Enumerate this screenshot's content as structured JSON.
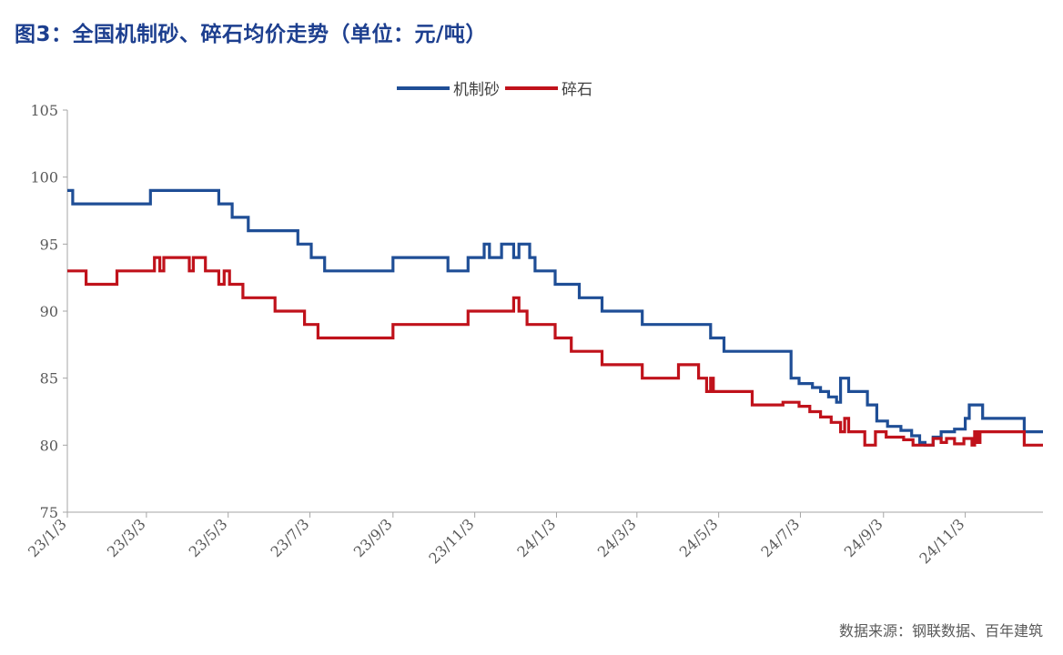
{
  "title": "图3：全国机制砂、碎石均价走势（单位：元/吨）",
  "source": "数据来源：钢联数据、百年建筑",
  "colors": {
    "series1": "#1f4e96",
    "series2": "#c0121b",
    "title": "#1d3f8f"
  },
  "chart_data": {
    "type": "line",
    "title": "图3：全国机制砂、碎石均价走势（单位：元/吨）",
    "xlabel": "",
    "ylabel": "",
    "ylim": [
      75,
      105
    ],
    "yticks": [
      75,
      80,
      85,
      90,
      95,
      100,
      105
    ],
    "xlim": [
      "2023-01-03",
      "2024-12-31"
    ],
    "xticks": [
      "23/1/3",
      "23/3/3",
      "23/5/3",
      "23/7/3",
      "23/9/3",
      "23/11/3",
      "24/1/3",
      "24/3/3",
      "24/5/3",
      "24/7/3",
      "24/9/3",
      "24/11/3"
    ],
    "xtick_dates": [
      "2023-01-03",
      "2023-03-03",
      "2023-05-03",
      "2023-07-03",
      "2023-09-03",
      "2023-11-03",
      "2024-01-03",
      "2024-03-03",
      "2024-05-03",
      "2024-07-03",
      "2024-09-03",
      "2024-11-03"
    ],
    "grid": false,
    "legend": "top-center",
    "step": true,
    "series": [
      {
        "name": "机制砂",
        "color": "#1f4e96",
        "points": [
          [
            "2023-01-03",
            99
          ],
          [
            "2023-01-07",
            98
          ],
          [
            "2023-03-06",
            99
          ],
          [
            "2023-04-26",
            98
          ],
          [
            "2023-05-06",
            97
          ],
          [
            "2023-05-18",
            96
          ],
          [
            "2023-06-24",
            95
          ],
          [
            "2023-07-04",
            94
          ],
          [
            "2023-07-14",
            93
          ],
          [
            "2023-09-03",
            94
          ],
          [
            "2023-10-14",
            93
          ],
          [
            "2023-10-29",
            94
          ],
          [
            "2023-11-10",
            95
          ],
          [
            "2023-11-14",
            94
          ],
          [
            "2023-11-23",
            95
          ],
          [
            "2023-12-02",
            94
          ],
          [
            "2023-12-06",
            95
          ],
          [
            "2023-12-14",
            94
          ],
          [
            "2023-12-18",
            93
          ],
          [
            "2024-01-02",
            92
          ],
          [
            "2024-01-20",
            91
          ],
          [
            "2024-02-06",
            90
          ],
          [
            "2024-03-07",
            89
          ],
          [
            "2024-04-27",
            88
          ],
          [
            "2024-05-07",
            87
          ],
          [
            "2024-06-26",
            85
          ],
          [
            "2024-07-02",
            84.6
          ],
          [
            "2024-07-12",
            84.3
          ],
          [
            "2024-07-18",
            84
          ],
          [
            "2024-07-24",
            83.6
          ],
          [
            "2024-07-30",
            83.2
          ],
          [
            "2024-08-02",
            85
          ],
          [
            "2024-08-08",
            84
          ],
          [
            "2024-08-22",
            83
          ],
          [
            "2024-08-29",
            81.8
          ],
          [
            "2024-09-06",
            81.4
          ],
          [
            "2024-09-16",
            81.1
          ],
          [
            "2024-09-24",
            80.7
          ],
          [
            "2024-09-30",
            80.2
          ],
          [
            "2024-10-04",
            80
          ],
          [
            "2024-10-10",
            80.6
          ],
          [
            "2024-10-16",
            81
          ],
          [
            "2024-10-26",
            81.2
          ],
          [
            "2024-11-03",
            82
          ],
          [
            "2024-11-06",
            83
          ],
          [
            "2024-11-16",
            82
          ],
          [
            "2024-12-17",
            81
          ],
          [
            "2024-12-31",
            81
          ]
        ]
      },
      {
        "name": "碎石",
        "color": "#c0121b",
        "points": [
          [
            "2023-01-03",
            93
          ],
          [
            "2023-01-17",
            92
          ],
          [
            "2023-02-09",
            93
          ],
          [
            "2023-03-09",
            94
          ],
          [
            "2023-03-13",
            93
          ],
          [
            "2023-03-16",
            94
          ],
          [
            "2023-04-04",
            93
          ],
          [
            "2023-04-07",
            94
          ],
          [
            "2023-04-16",
            93
          ],
          [
            "2023-04-26",
            92
          ],
          [
            "2023-04-30",
            93
          ],
          [
            "2023-05-04",
            92
          ],
          [
            "2023-05-14",
            91
          ],
          [
            "2023-06-07",
            90
          ],
          [
            "2023-06-29",
            89
          ],
          [
            "2023-07-09",
            88
          ],
          [
            "2023-09-03",
            89
          ],
          [
            "2023-10-29",
            90
          ],
          [
            "2023-12-02",
            91
          ],
          [
            "2023-12-06",
            90
          ],
          [
            "2023-12-12",
            89
          ],
          [
            "2024-01-02",
            88
          ],
          [
            "2024-01-14",
            87
          ],
          [
            "2024-02-06",
            86
          ],
          [
            "2024-03-07",
            85
          ],
          [
            "2024-04-03",
            86
          ],
          [
            "2024-04-18",
            85
          ],
          [
            "2024-04-24",
            84
          ],
          [
            "2024-04-27",
            85
          ],
          [
            "2024-04-29",
            84
          ],
          [
            "2024-05-28",
            83
          ],
          [
            "2024-06-20",
            83.2
          ],
          [
            "2024-07-02",
            82.9
          ],
          [
            "2024-07-10",
            82.5
          ],
          [
            "2024-07-18",
            82.1
          ],
          [
            "2024-07-26",
            81.7
          ],
          [
            "2024-08-02",
            81
          ],
          [
            "2024-08-05",
            82
          ],
          [
            "2024-08-08",
            81
          ],
          [
            "2024-08-20",
            80
          ],
          [
            "2024-08-28",
            81
          ],
          [
            "2024-09-05",
            80.6
          ],
          [
            "2024-09-18",
            80.4
          ],
          [
            "2024-09-25",
            80
          ],
          [
            "2024-10-10",
            80.5
          ],
          [
            "2024-10-16",
            80.2
          ],
          [
            "2024-10-20",
            80.5
          ],
          [
            "2024-10-26",
            80.1
          ],
          [
            "2024-11-02",
            80.5
          ],
          [
            "2024-11-08",
            80
          ],
          [
            "2024-11-10",
            81
          ],
          [
            "2024-11-12",
            80.2
          ],
          [
            "2024-11-14",
            81
          ],
          [
            "2024-12-17",
            80
          ],
          [
            "2024-12-31",
            80
          ]
        ]
      }
    ]
  }
}
